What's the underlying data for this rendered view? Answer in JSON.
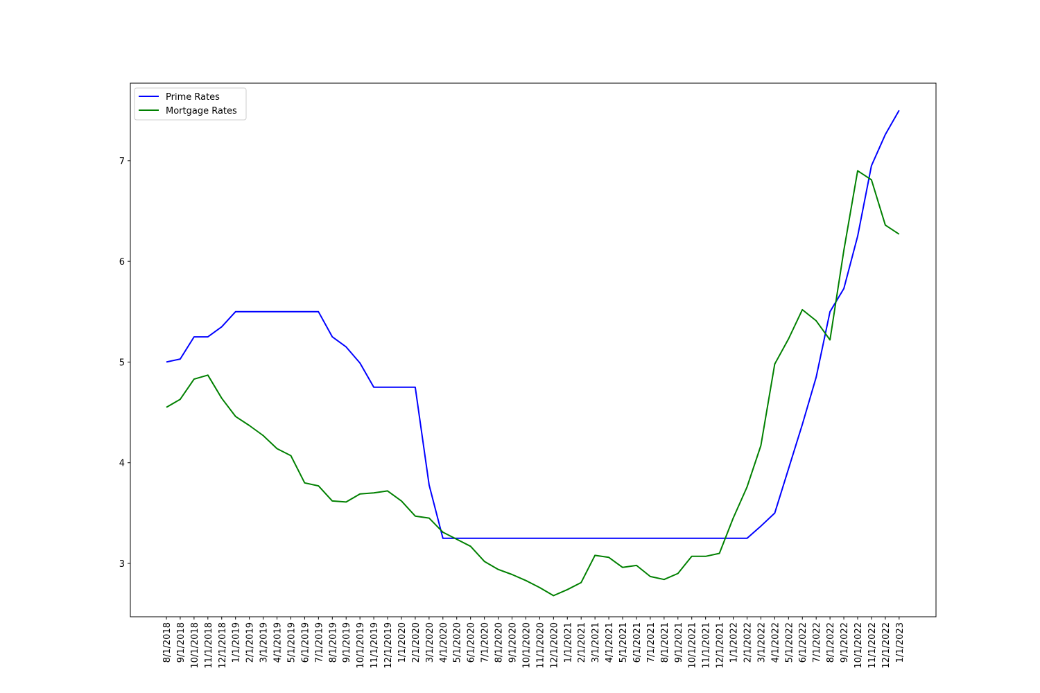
{
  "chart_data": {
    "type": "line",
    "title": "",
    "xlabel": "",
    "ylabel": "",
    "ylim": [
      2.47,
      7.77
    ],
    "yticks": [
      3,
      4,
      5,
      6,
      7
    ],
    "grid": false,
    "legend_position": "top-left",
    "x": [
      "8/1/2018",
      "9/1/2018",
      "10/1/2018",
      "11/1/2018",
      "12/1/2018",
      "1/1/2019",
      "2/1/2019",
      "3/1/2019",
      "4/1/2019",
      "5/1/2019",
      "6/1/2019",
      "7/1/2019",
      "8/1/2019",
      "9/1/2019",
      "10/1/2019",
      "11/1/2019",
      "12/1/2019",
      "1/1/2020",
      "2/1/2020",
      "3/1/2020",
      "4/1/2020",
      "5/1/2020",
      "6/1/2020",
      "7/1/2020",
      "8/1/2020",
      "9/1/2020",
      "10/1/2020",
      "11/1/2020",
      "12/1/2020",
      "1/1/2021",
      "2/1/2021",
      "3/1/2021",
      "4/1/2021",
      "5/1/2021",
      "6/1/2021",
      "7/1/2021",
      "8/1/2021",
      "9/1/2021",
      "10/1/2021",
      "11/1/2021",
      "12/1/2021",
      "1/1/2022",
      "2/1/2022",
      "3/1/2022",
      "4/1/2022",
      "5/1/2022",
      "6/1/2022",
      "7/1/2022",
      "8/1/2022",
      "9/1/2022",
      "10/1/2022",
      "11/1/2022",
      "12/1/2022",
      "1/1/2023"
    ],
    "series": [
      {
        "name": "Prime Rates",
        "color": "#0000ff",
        "values": [
          5.0,
          5.03,
          5.25,
          5.25,
          5.35,
          5.5,
          5.5,
          5.5,
          5.5,
          5.5,
          5.5,
          5.5,
          5.25,
          5.15,
          4.99,
          4.75,
          4.75,
          4.75,
          4.75,
          3.78,
          3.25,
          3.25,
          3.25,
          3.25,
          3.25,
          3.25,
          3.25,
          3.25,
          3.25,
          3.25,
          3.25,
          3.25,
          3.25,
          3.25,
          3.25,
          3.25,
          3.25,
          3.25,
          3.25,
          3.25,
          3.25,
          3.25,
          3.25,
          3.37,
          3.5,
          3.94,
          4.38,
          4.85,
          5.5,
          5.73,
          6.25,
          6.95,
          7.26,
          7.5
        ]
      },
      {
        "name": "Mortgage Rates",
        "color": "#008000",
        "values": [
          4.55,
          4.63,
          4.83,
          4.87,
          4.64,
          4.46,
          4.37,
          4.27,
          4.14,
          4.07,
          3.8,
          3.77,
          3.62,
          3.61,
          3.69,
          3.7,
          3.72,
          3.62,
          3.47,
          3.45,
          3.31,
          3.24,
          3.17,
          3.02,
          2.94,
          2.89,
          2.83,
          2.76,
          2.68,
          2.74,
          2.81,
          3.08,
          3.06,
          2.96,
          2.98,
          2.87,
          2.84,
          2.9,
          3.07,
          3.07,
          3.1,
          3.45,
          3.76,
          4.17,
          4.98,
          5.23,
          5.52,
          5.41,
          5.22,
          6.11,
          6.9,
          6.81,
          6.36,
          6.27
        ]
      }
    ]
  }
}
